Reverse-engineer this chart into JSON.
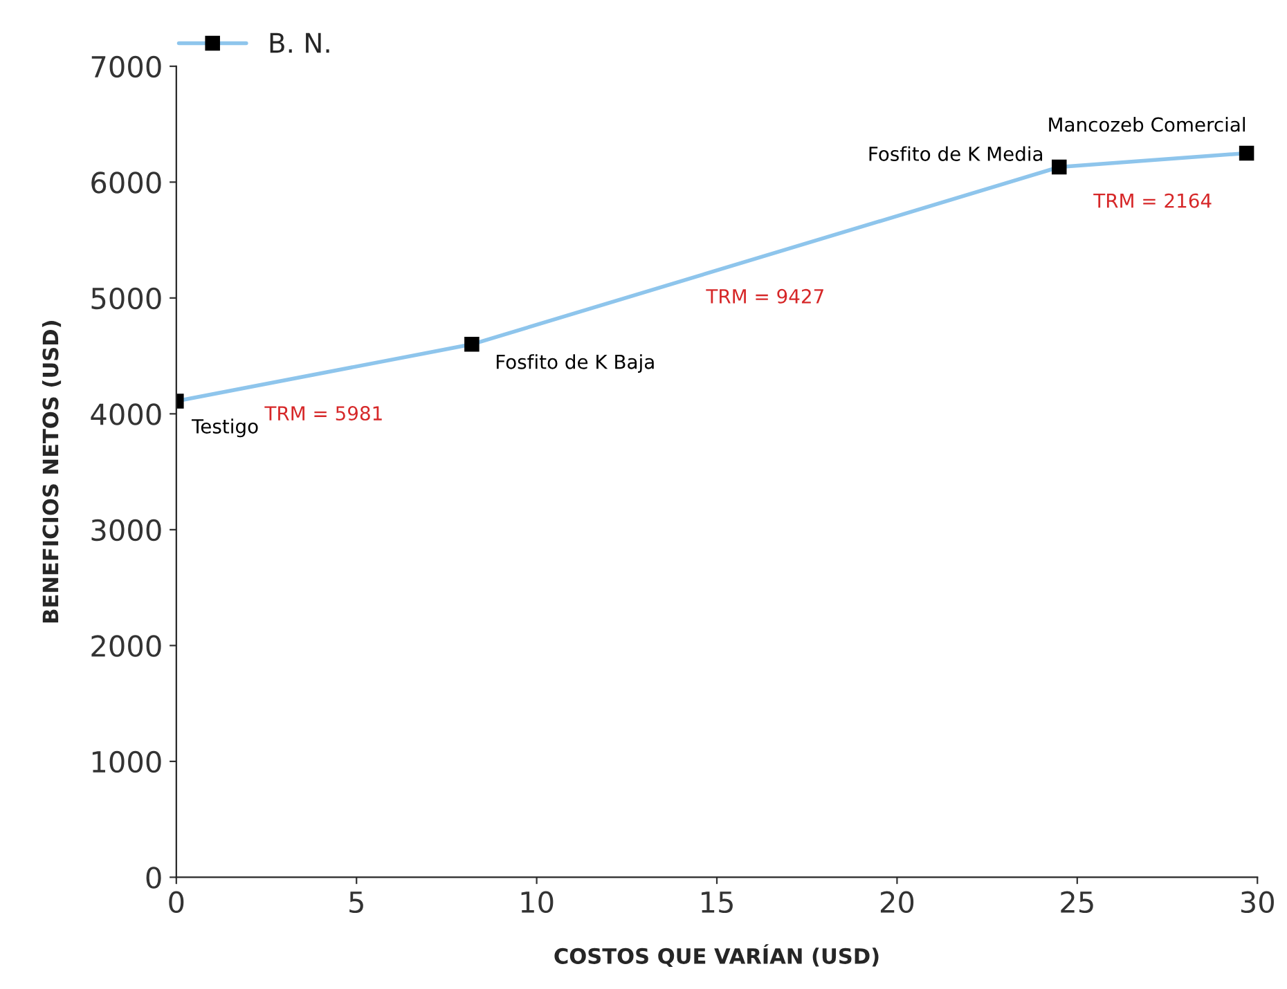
{
  "chart_data": {
    "type": "line",
    "xlabel": "COSTOS QUE VARÍAN (USD)",
    "ylabel": "BENEFICIOS NETOS (USD)",
    "x": [
      0,
      8.2,
      24.5,
      29.7
    ],
    "series": [
      {
        "name": "B. N.",
        "color": "#8ec5ec",
        "values": [
          4110,
          4600,
          6130,
          6250
        ]
      }
    ],
    "xlim": [
      0,
      30
    ],
    "xticks": [
      0,
      5,
      10,
      15,
      20,
      25,
      30
    ],
    "ylim": [
      0,
      7000
    ],
    "yticks": [
      0,
      1000,
      2000,
      3000,
      4000,
      5000,
      6000,
      7000
    ],
    "marker": "square",
    "line_style": "solid",
    "grid": false,
    "legend": "top left",
    "annotations": [
      {
        "text": "Testigo",
        "x": 0,
        "y": 4110
      },
      {
        "text": "Fosfito de K Baja",
        "x": 8.2,
        "y": 4600
      },
      {
        "text": "Fosfito de K Media",
        "x": 24.5,
        "y": 6130
      },
      {
        "text": "Mancozeb Comercial",
        "x": 29.7,
        "y": 6250
      },
      "TRM = 5981",
      "TRM = 9427",
      "TRM = 2164"
    ]
  }
}
